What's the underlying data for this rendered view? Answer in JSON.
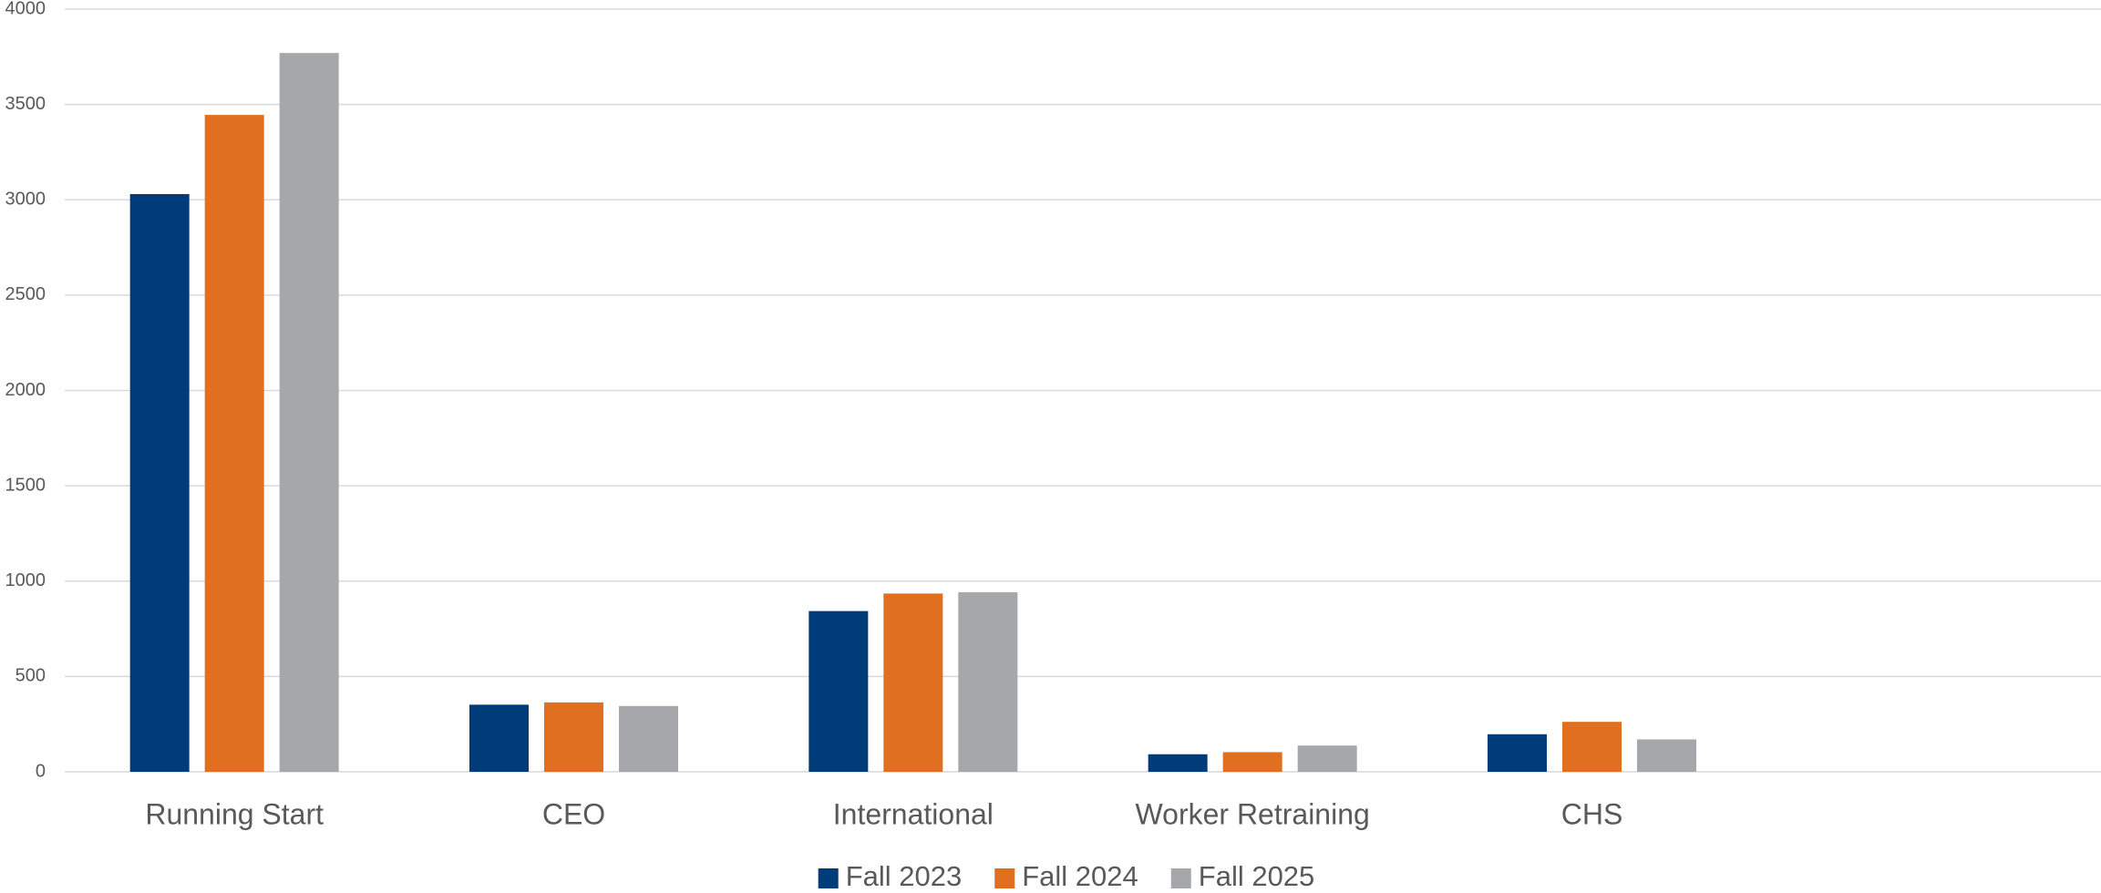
{
  "chart_data": {
    "type": "bar",
    "categories": [
      "Running Start",
      "CEO",
      "International",
      "Worker Retraining",
      "CHS",
      null
    ],
    "series": [
      {
        "name": "Fall 2023",
        "color": "#003b7a",
        "values": [
          3030,
          352,
          843,
          92,
          197,
          null
        ]
      },
      {
        "name": "Fall 2024",
        "color": "#e07020",
        "values": [
          3445,
          364,
          935,
          103,
          262,
          null
        ]
      },
      {
        "name": "Fall 2025",
        "color": "#a6a7ab",
        "values": [
          3770,
          345,
          942,
          138,
          170,
          null
        ]
      }
    ],
    "ylim": [
      0,
      4000
    ],
    "yticks": [
      0,
      500,
      1000,
      1500,
      2000,
      2500,
      3000,
      3500,
      4000
    ],
    "grid": true,
    "legend": "bottom"
  }
}
